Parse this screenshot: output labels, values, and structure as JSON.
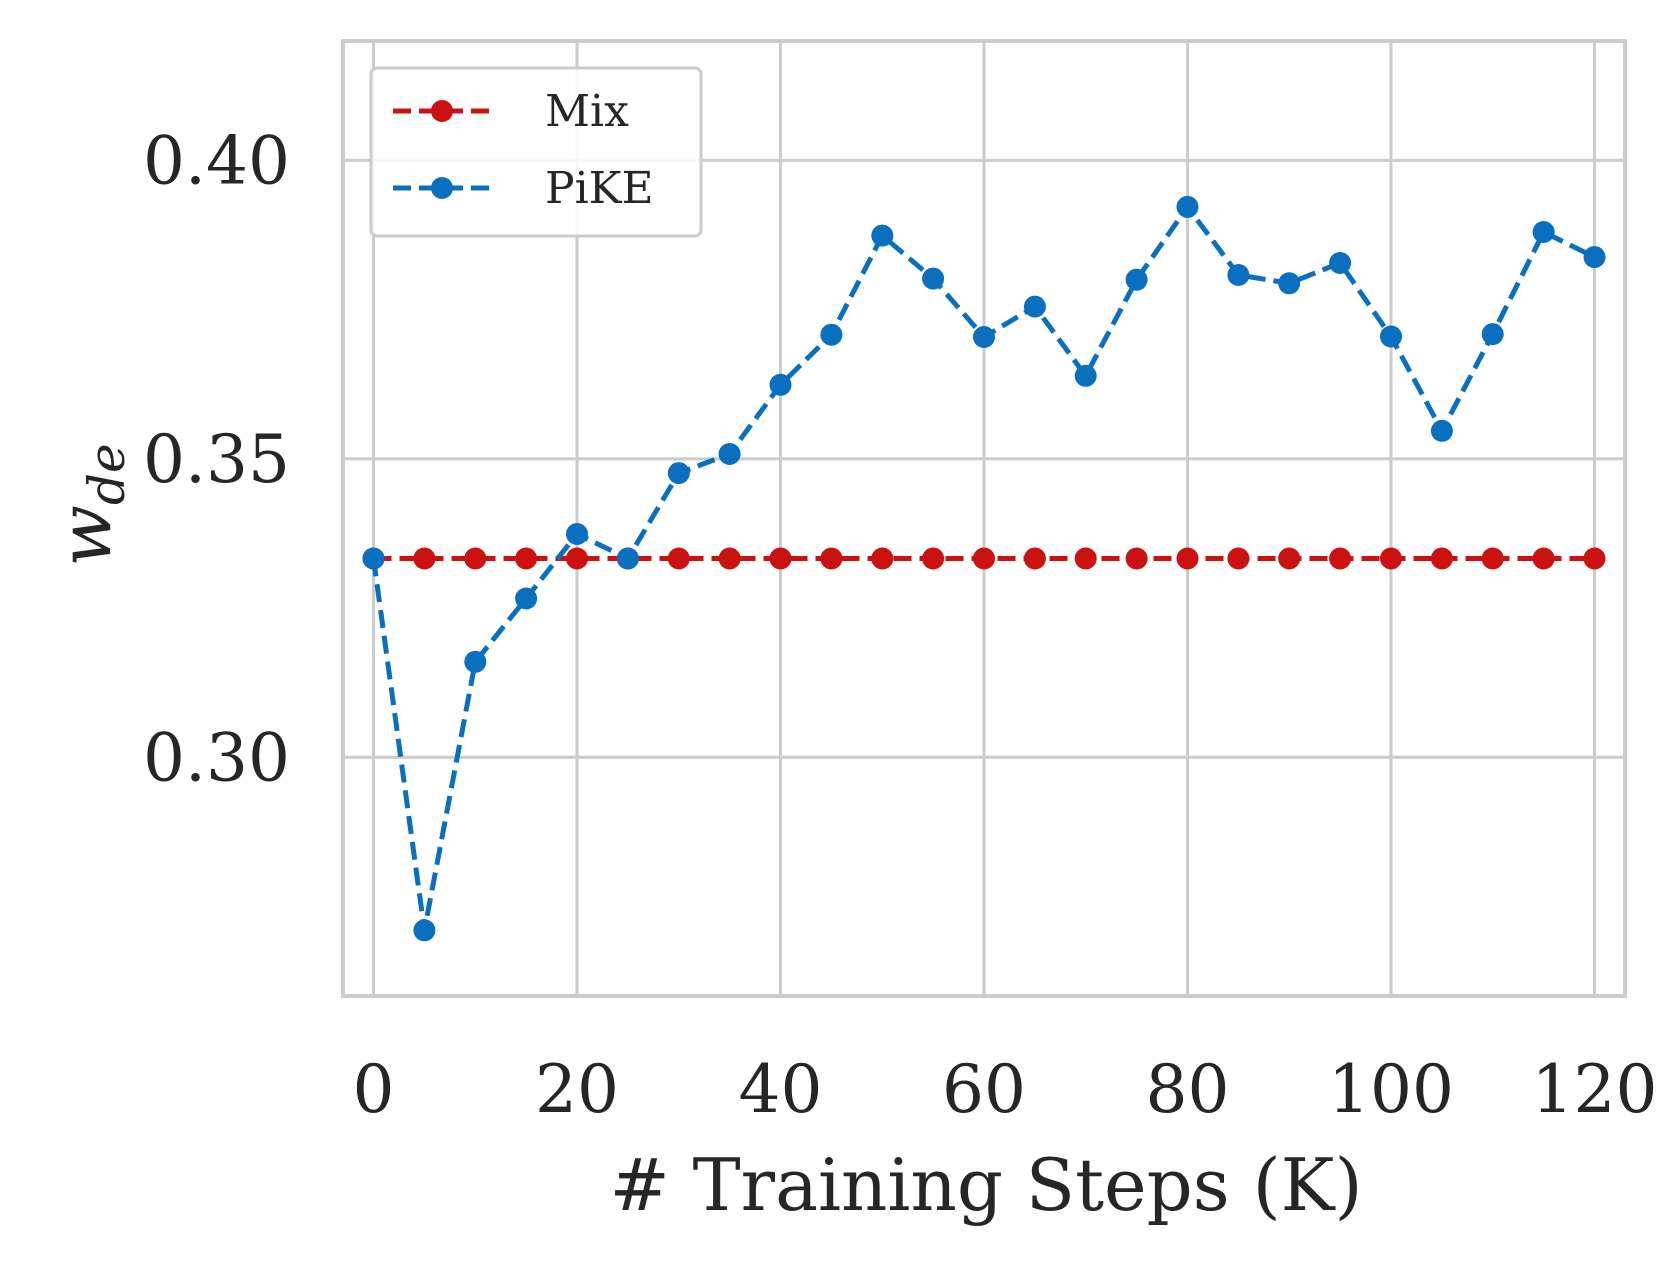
{
  "chart_data": {
    "type": "line",
    "xlabel": "# Training Steps (K)",
    "ylabel": "w_de",
    "ylabel_base": "w",
    "ylabel_sub": "de",
    "xlim": [
      -3,
      123
    ],
    "ylim": [
      0.26,
      0.42
    ],
    "x_ticks": [
      0,
      20,
      40,
      60,
      80,
      100,
      120
    ],
    "y_ticks": [
      0.3,
      0.35,
      0.4
    ],
    "x_tick_labels": [
      "0",
      "20",
      "40",
      "60",
      "80",
      "100",
      "120"
    ],
    "y_tick_labels": [
      "0.30",
      "0.35",
      "0.40"
    ],
    "grid": true,
    "legend_position": "top-left",
    "x": [
      0,
      5,
      10,
      15,
      20,
      25,
      30,
      35,
      40,
      45,
      50,
      55,
      60,
      65,
      70,
      75,
      80,
      85,
      90,
      95,
      100,
      105,
      110,
      115,
      120
    ],
    "series": [
      {
        "name": "Mix",
        "color": "#cc1111",
        "values": [
          0.3333,
          0.3333,
          0.3333,
          0.3333,
          0.3333,
          0.3333,
          0.3333,
          0.3333,
          0.3333,
          0.3333,
          0.3333,
          0.3333,
          0.3333,
          0.3333,
          0.3333,
          0.3333,
          0.3333,
          0.3333,
          0.3333,
          0.3333,
          0.3333,
          0.3333,
          0.3333,
          0.3333,
          0.3333
        ]
      },
      {
        "name": "PiKE",
        "color": "#0a6fbe",
        "values": [
          0.3333,
          0.271,
          0.316,
          0.3266,
          0.3374,
          0.3333,
          0.3476,
          0.3508,
          0.3624,
          0.3708,
          0.3874,
          0.3802,
          0.3704,
          0.3755,
          0.3639,
          0.38,
          0.3922,
          0.3808,
          0.3794,
          0.3828,
          0.3705,
          0.3547,
          0.3709,
          0.388,
          0.3838
        ]
      }
    ]
  }
}
